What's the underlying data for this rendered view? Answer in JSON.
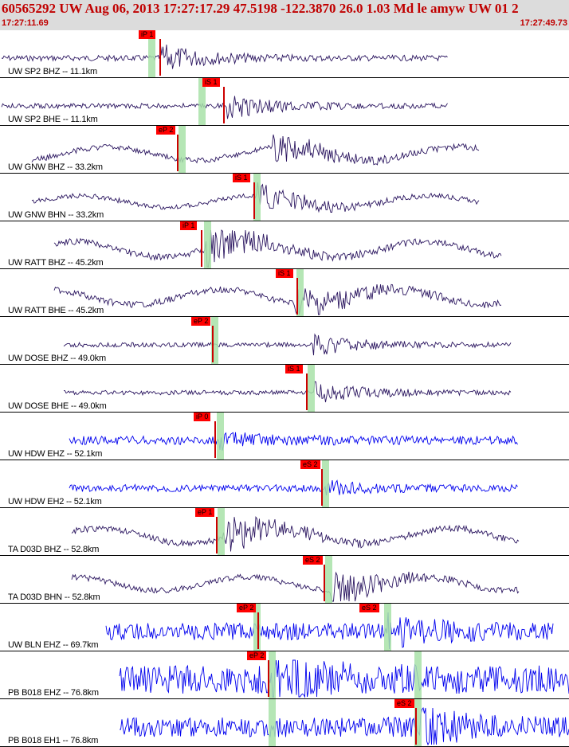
{
  "header": {
    "title": "60565292 UW Aug 06, 2013 17:27:17.29    47.5198 -122.3870 26.0 1.03 Md le amyw UW 01    2",
    "start_time": "17:27:11.69",
    "end_time": "17:27:49.73"
  },
  "colors": {
    "header_bg": "#dcdcdc",
    "header_text": "#c00000",
    "trace_dark": "#2b1660",
    "trace_blue": "#0000ee",
    "pick_red": "#ff0000",
    "arrival_band": "#a8e2a8",
    "divider": "#000000"
  },
  "channels": [
    {
      "label": "UW SP2 BHZ -- 11.1km",
      "pick": "iP 1",
      "color": "dark"
    },
    {
      "label": "UW SP2 BHE -- 11.1km",
      "pick": "iS 1",
      "color": "dark"
    },
    {
      "label": "UW GNW BHZ -- 33.2km",
      "pick": "eP 2",
      "color": "dark"
    },
    {
      "label": "UW GNW BHN -- 33.2km",
      "pick": "iS 1",
      "color": "dark"
    },
    {
      "label": "UW RATT BHZ -- 45.2km",
      "pick": "iP 1",
      "color": "dark"
    },
    {
      "label": "UW RATT BHE -- 45.2km",
      "pick": "iS 1",
      "color": "dark"
    },
    {
      "label": "UW DOSE BHZ -- 49.0km",
      "pick": "eP 2",
      "color": "dark"
    },
    {
      "label": "UW DOSE BHE -- 49.0km",
      "pick": "iS 1",
      "color": "dark"
    },
    {
      "label": "UW HDW EHZ -- 52.1km",
      "pick": "iP 0",
      "color": "blue"
    },
    {
      "label": "UW HDW EH2 -- 52.1km",
      "pick": "eS 2",
      "color": "blue"
    },
    {
      "label": "TA D03D BHZ -- 52.8km",
      "pick": "eP 1",
      "color": "dark"
    },
    {
      "label": "TA D03D BHN -- 52.8km",
      "pick": "eS 2",
      "color": "dark"
    },
    {
      "label": "UW BLN EHZ -- 69.7km",
      "pick": "eP 2",
      "extra_pick": "eS 2",
      "color": "blue"
    },
    {
      "label": "PB B018 EHZ -- 76.8km",
      "pick": "eP 2",
      "color": "blue"
    },
    {
      "label": "PB B018 EH1 -- 76.8km",
      "pick": "eS 2",
      "color": "blue"
    }
  ]
}
